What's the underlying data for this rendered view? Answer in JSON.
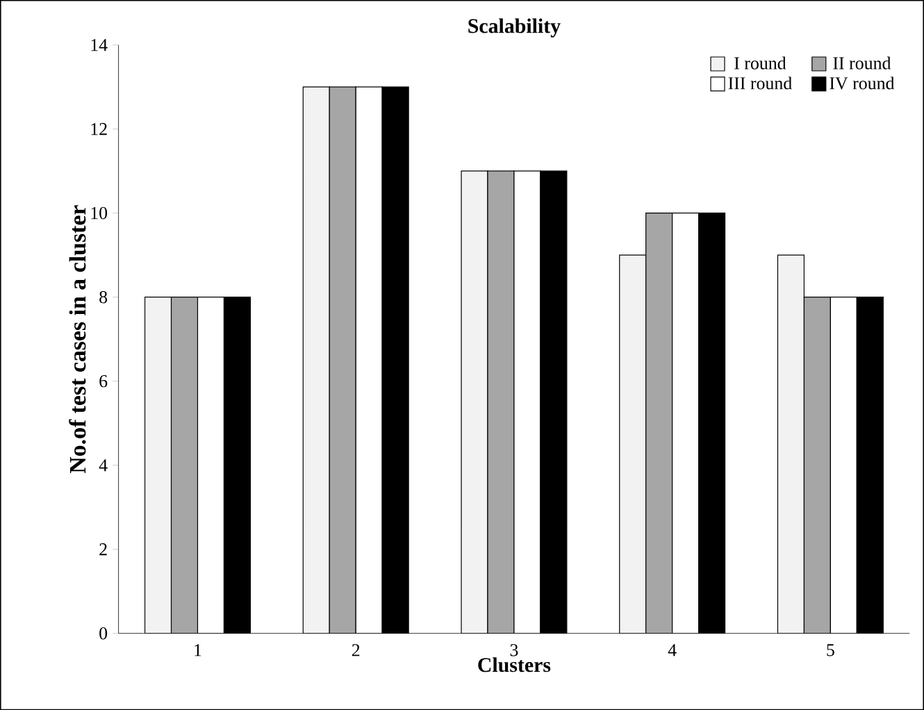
{
  "chart_data": {
    "type": "bar",
    "title": "Scalability",
    "xlabel": "Clusters",
    "ylabel": "No.of test cases in a cluster",
    "categories": [
      "1",
      "2",
      "3",
      "4",
      "5"
    ],
    "series": [
      {
        "name": "I round",
        "color": "#f2f2f2",
        "values": [
          8,
          13,
          11,
          9,
          9
        ]
      },
      {
        "name": "II round",
        "color": "#a6a6a6",
        "values": [
          8,
          13,
          11,
          10,
          8
        ]
      },
      {
        "name": "III round",
        "color": "#ffffff",
        "values": [
          8,
          13,
          11,
          10,
          8
        ]
      },
      {
        "name": "IV round",
        "color": "#000000",
        "values": [
          8,
          13,
          11,
          10,
          8
        ]
      }
    ],
    "ylim": [
      0,
      14
    ],
    "yticks": [
      0,
      2,
      4,
      6,
      8,
      10,
      12,
      14
    ],
    "grid": false,
    "legend": "top right"
  }
}
